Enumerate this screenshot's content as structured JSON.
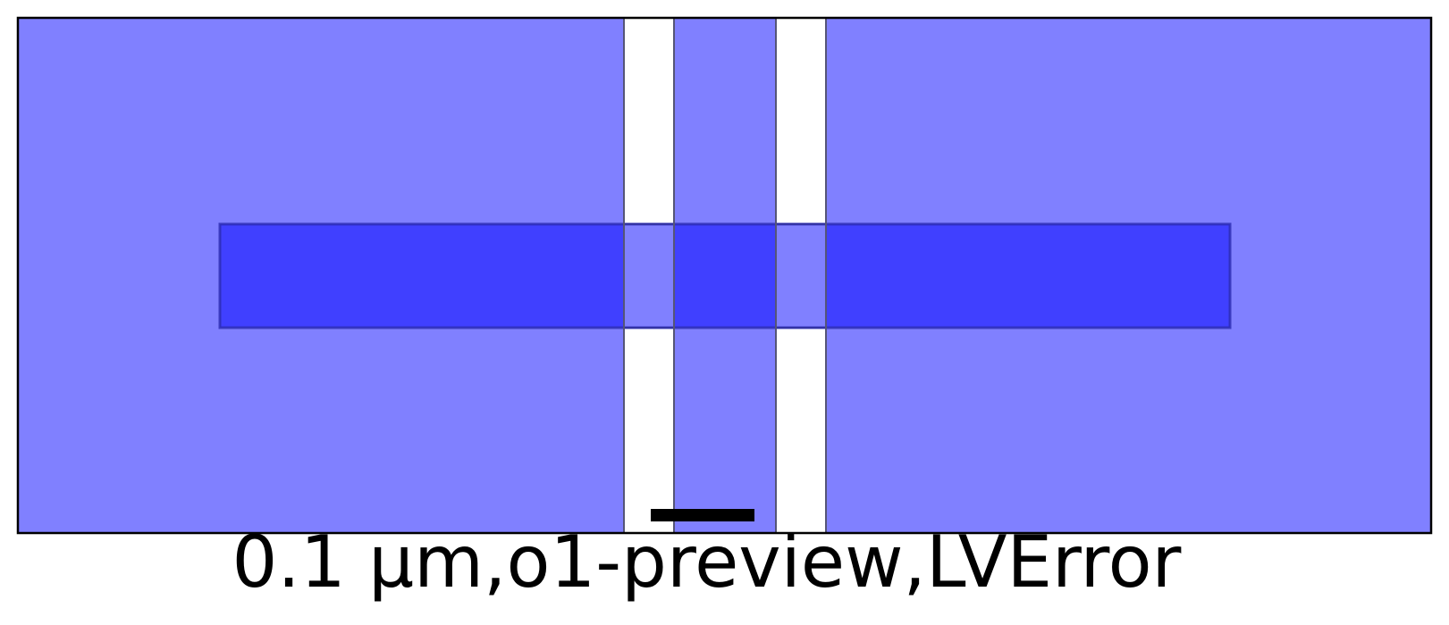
{
  "caption": "0.1 µm,o1-preview,LVError",
  "scale_bar": {
    "length_um": 0.1
  },
  "colors": {
    "background": "#ffffff",
    "substrate_fill": "#8080ff",
    "gate_fill": "#4040ff",
    "overlap_fill": "#8080ff",
    "gap_fill": "#ffffff",
    "outline": "#000000",
    "gate_outline": "#2a2ab0",
    "scale_bar": "#000000"
  }
}
